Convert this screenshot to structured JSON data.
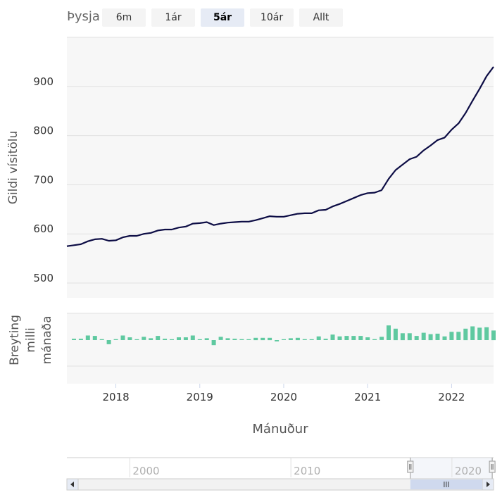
{
  "range_selector": {
    "label": "Þysja",
    "buttons": [
      {
        "label": "6m",
        "active": false
      },
      {
        "label": "1ár",
        "active": false
      },
      {
        "label": "5ár",
        "active": true
      },
      {
        "label": "10ár",
        "active": false
      },
      {
        "label": "Allt",
        "active": false
      }
    ]
  },
  "colors": {
    "line": "#0d0d45",
    "bars": "#5fc9a0",
    "plot_bg": "#f7f7f7",
    "grid": "#e2e2e2",
    "navigator_mask": "#e6ebf5"
  },
  "chart_data": [
    {
      "type": "line",
      "ylabel": "Gildi vísitölu",
      "yticks": [
        500,
        600,
        700,
        800,
        900
      ],
      "ylim": [
        470,
        1000
      ],
      "x": [
        "2017-06",
        "2017-07",
        "2017-08",
        "2017-09",
        "2017-10",
        "2017-11",
        "2017-12",
        "2018-01",
        "2018-02",
        "2018-03",
        "2018-04",
        "2018-05",
        "2018-06",
        "2018-07",
        "2018-08",
        "2018-09",
        "2018-10",
        "2018-11",
        "2018-12",
        "2019-01",
        "2019-02",
        "2019-03",
        "2019-04",
        "2019-05",
        "2019-06",
        "2019-07",
        "2019-08",
        "2019-09",
        "2019-10",
        "2019-11",
        "2019-12",
        "2020-01",
        "2020-02",
        "2020-03",
        "2020-04",
        "2020-05",
        "2020-06",
        "2020-07",
        "2020-08",
        "2020-09",
        "2020-10",
        "2020-11",
        "2020-12",
        "2021-01",
        "2021-02",
        "2021-03",
        "2021-04",
        "2021-05",
        "2021-06",
        "2021-07",
        "2021-08",
        "2021-09",
        "2021-10",
        "2021-11",
        "2021-12",
        "2022-01",
        "2022-02",
        "2022-03",
        "2022-04",
        "2022-05",
        "2022-06",
        "2022-07"
      ],
      "values": [
        575,
        577,
        579,
        585,
        589,
        590,
        586,
        587,
        593,
        596,
        596,
        600,
        602,
        607,
        609,
        609,
        613,
        615,
        621,
        622,
        624,
        618,
        621,
        623,
        624,
        625,
        625,
        628,
        632,
        636,
        635,
        635,
        638,
        641,
        642,
        642,
        648,
        649,
        656,
        661,
        667,
        673,
        679,
        683,
        684,
        689,
        712,
        730,
        741,
        752,
        757,
        770,
        780,
        791,
        796,
        812,
        825,
        846,
        871,
        895,
        921,
        940
      ],
      "grid": true
    },
    {
      "type": "bar",
      "ylabel": "Breyting milli mánaða",
      "x": [
        "2017-07",
        "2017-08",
        "2017-09",
        "2017-10",
        "2017-11",
        "2017-12",
        "2018-01",
        "2018-02",
        "2018-03",
        "2018-04",
        "2018-05",
        "2018-06",
        "2018-07",
        "2018-08",
        "2018-09",
        "2018-10",
        "2018-11",
        "2018-12",
        "2019-01",
        "2019-02",
        "2019-03",
        "2019-04",
        "2019-05",
        "2019-06",
        "2019-07",
        "2019-08",
        "2019-09",
        "2019-10",
        "2019-11",
        "2019-12",
        "2020-01",
        "2020-02",
        "2020-03",
        "2020-04",
        "2020-05",
        "2020-06",
        "2020-07",
        "2020-08",
        "2020-09",
        "2020-10",
        "2020-11",
        "2020-12",
        "2021-01",
        "2021-02",
        "2021-03",
        "2021-04",
        "2021-05",
        "2021-06",
        "2021-07",
        "2021-08",
        "2021-09",
        "2021-10",
        "2021-11",
        "2021-12",
        "2022-01",
        "2022-02",
        "2022-03",
        "2022-04",
        "2022-05",
        "2022-06",
        "2022-07"
      ],
      "values": [
        0.3,
        0.3,
        1.0,
        0.9,
        0.2,
        -0.9,
        0.2,
        1.0,
        0.6,
        0.1,
        0.7,
        0.4,
        0.9,
        0.3,
        0.1,
        0.6,
        0.6,
        1.0,
        0.1,
        0.4,
        -1.1,
        0.7,
        0.4,
        0.3,
        0.2,
        0.1,
        0.5,
        0.5,
        0.5,
        -0.3,
        0.1,
        0.4,
        0.5,
        0.2,
        0.1,
        0.8,
        0.3,
        1.2,
        0.8,
        0.9,
        0.9,
        0.9,
        0.6,
        0.2,
        0.7,
        3.2,
        2.5,
        1.5,
        1.5,
        0.9,
        1.6,
        1.3,
        1.4,
        0.8,
        1.8,
        1.8,
        2.5,
        3.0,
        2.7,
        2.8,
        2.1
      ],
      "grid": true
    }
  ],
  "x_axis": {
    "title": "Mánuður",
    "range": [
      "2017-06",
      "2022-07"
    ],
    "ticks": [
      {
        "date": "2018-01",
        "label": "2018"
      },
      {
        "date": "2019-01",
        "label": "2019"
      },
      {
        "date": "2020-01",
        "label": "2020"
      },
      {
        "date": "2021-01",
        "label": "2021"
      },
      {
        "date": "2022-01",
        "label": "2022"
      }
    ]
  },
  "navigator": {
    "labels": [
      {
        "year": 2000,
        "label": "2000"
      },
      {
        "year": 2010,
        "label": "2010"
      },
      {
        "year": 2020,
        "label": "2020"
      }
    ],
    "selection": [
      "2017-06",
      "2022-07"
    ]
  }
}
